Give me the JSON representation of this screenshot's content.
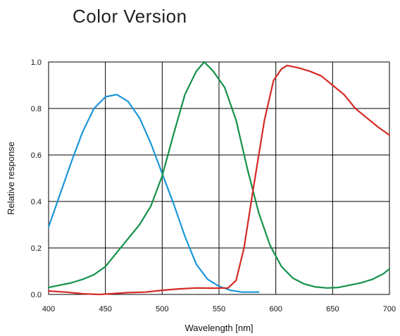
{
  "page": {
    "title": "Color Version"
  },
  "chart_data": {
    "type": "line",
    "title": "Color Version",
    "xlabel": "Wavelength [nm]",
    "ylabel": "Relative response",
    "xlim": [
      400,
      700
    ],
    "ylim": [
      0,
      1.0
    ],
    "xticks": [
      400,
      450,
      500,
      550,
      600,
      650,
      700
    ],
    "yticks": [
      0.0,
      0.2,
      0.4,
      0.6,
      0.8,
      1.0
    ],
    "xtick_labels": [
      "400",
      "450",
      "500",
      "550",
      "600",
      "650",
      "700"
    ],
    "ytick_labels": [
      "0.0",
      "0.2",
      "0.4",
      "0.6",
      "0.8",
      "1.0"
    ],
    "grid": true,
    "series": [
      {
        "color": "#1a96d8",
        "points": [
          [
            400,
            0.29
          ],
          [
            410,
            0.43
          ],
          [
            420,
            0.57
          ],
          [
            430,
            0.7
          ],
          [
            440,
            0.8
          ],
          [
            450,
            0.85
          ],
          [
            460,
            0.86
          ],
          [
            470,
            0.83
          ],
          [
            480,
            0.76
          ],
          [
            490,
            0.65
          ],
          [
            500,
            0.52
          ],
          [
            510,
            0.39
          ],
          [
            520,
            0.25
          ],
          [
            530,
            0.13
          ],
          [
            540,
            0.065
          ],
          [
            550,
            0.035
          ],
          [
            560,
            0.018
          ],
          [
            570,
            0.01
          ],
          [
            585,
            0.01
          ]
        ]
      },
      {
        "color": "#14914a",
        "points": [
          [
            400,
            0.03
          ],
          [
            410,
            0.04
          ],
          [
            420,
            0.05
          ],
          [
            430,
            0.065
          ],
          [
            440,
            0.085
          ],
          [
            450,
            0.12
          ],
          [
            460,
            0.18
          ],
          [
            470,
            0.24
          ],
          [
            480,
            0.3
          ],
          [
            490,
            0.38
          ],
          [
            500,
            0.51
          ],
          [
            510,
            0.69
          ],
          [
            520,
            0.86
          ],
          [
            530,
            0.96
          ],
          [
            537,
            1.0
          ],
          [
            545,
            0.96
          ],
          [
            555,
            0.89
          ],
          [
            565,
            0.75
          ],
          [
            575,
            0.54
          ],
          [
            585,
            0.35
          ],
          [
            595,
            0.21
          ],
          [
            605,
            0.12
          ],
          [
            615,
            0.07
          ],
          [
            625,
            0.045
          ],
          [
            635,
            0.032
          ],
          [
            645,
            0.028
          ],
          [
            655,
            0.03
          ],
          [
            665,
            0.04
          ],
          [
            675,
            0.05
          ],
          [
            685,
            0.065
          ],
          [
            695,
            0.09
          ],
          [
            700,
            0.11
          ]
        ]
      },
      {
        "color": "#d42a24",
        "points": [
          [
            400,
            0.015
          ],
          [
            415,
            0.01
          ],
          [
            430,
            0.003
          ],
          [
            445,
            0.0
          ],
          [
            455,
            0.003
          ],
          [
            470,
            0.008
          ],
          [
            485,
            0.01
          ],
          [
            500,
            0.018
          ],
          [
            515,
            0.024
          ],
          [
            530,
            0.028
          ],
          [
            545,
            0.027
          ],
          [
            558,
            0.028
          ],
          [
            565,
            0.06
          ],
          [
            572,
            0.2
          ],
          [
            580,
            0.45
          ],
          [
            590,
            0.75
          ],
          [
            598,
            0.92
          ],
          [
            605,
            0.97
          ],
          [
            610,
            0.985
          ],
          [
            620,
            0.975
          ],
          [
            630,
            0.96
          ],
          [
            640,
            0.94
          ],
          [
            650,
            0.9
          ],
          [
            660,
            0.86
          ],
          [
            670,
            0.8
          ],
          [
            680,
            0.76
          ],
          [
            690,
            0.72
          ],
          [
            700,
            0.685
          ]
        ]
      }
    ]
  }
}
